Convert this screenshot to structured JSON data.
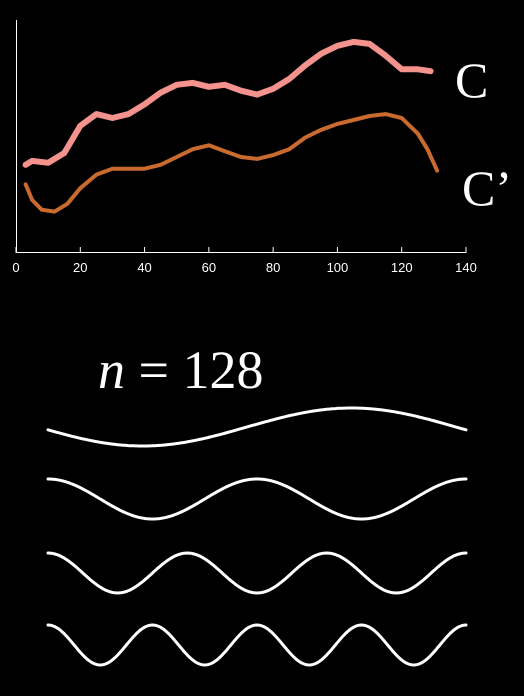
{
  "chart_data": {
    "type": "line",
    "xlim": [
      0,
      140
    ],
    "ylim": [
      0,
      1
    ],
    "x_ticks": [
      0,
      20,
      40,
      60,
      80,
      100,
      120,
      140
    ],
    "grid": false,
    "legend": "inline-right",
    "series": [
      {
        "name": "C",
        "color": "#f4938e",
        "x": [
          3,
          5,
          10,
          15,
          20,
          25,
          30,
          35,
          40,
          45,
          50,
          55,
          60,
          65,
          70,
          75,
          80,
          85,
          90,
          95,
          100,
          105,
          110,
          115,
          120,
          125,
          129
        ],
        "y": [
          0.36,
          0.38,
          0.37,
          0.42,
          0.56,
          0.62,
          0.6,
          0.62,
          0.67,
          0.73,
          0.77,
          0.78,
          0.76,
          0.77,
          0.74,
          0.72,
          0.75,
          0.8,
          0.87,
          0.93,
          0.97,
          0.99,
          0.98,
          0.92,
          0.85,
          0.85,
          0.84
        ]
      },
      {
        "name": "C’",
        "color": "#c96a2e",
        "x": [
          3,
          5,
          8,
          12,
          16,
          20,
          25,
          30,
          35,
          40,
          45,
          50,
          55,
          60,
          65,
          70,
          75,
          80,
          85,
          90,
          95,
          100,
          105,
          110,
          115,
          120,
          125,
          128,
          131
        ],
        "y": [
          0.26,
          0.18,
          0.13,
          0.12,
          0.16,
          0.24,
          0.31,
          0.34,
          0.34,
          0.34,
          0.36,
          0.4,
          0.44,
          0.46,
          0.43,
          0.4,
          0.39,
          0.41,
          0.44,
          0.5,
          0.54,
          0.57,
          0.59,
          0.61,
          0.62,
          0.6,
          0.52,
          0.44,
          0.33
        ]
      }
    ]
  },
  "labels": {
    "series_c": "C",
    "series_c_prime": "C’",
    "caption_var": "n",
    "caption_rest": " = 128"
  },
  "waves": {
    "color": "#ffffff",
    "cycles": [
      1,
      2,
      3,
      4
    ]
  }
}
